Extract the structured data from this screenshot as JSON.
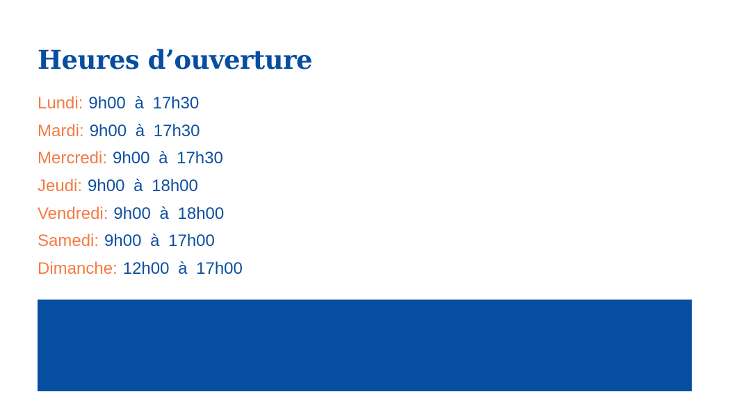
{
  "title": "Heures d’ouverture",
  "hours": [
    {
      "day": "Lundi:",
      "time": "9h00 à 17h30"
    },
    {
      "day": "Mardi:",
      "time": "9h00 à 17h30"
    },
    {
      "day": "Mercredi:",
      "time": "9h00 à 17h30"
    },
    {
      "day": "Jeudi:",
      "time": "9h00 à 18h00"
    },
    {
      "day": "Vendredi:",
      "time": "9h00 à 18h00"
    },
    {
      "day": "Samedi:",
      "time": "9h00 à 17h00"
    },
    {
      "day": "Dimanche:",
      "time": "12h00 à 17h00"
    }
  ],
  "colors": {
    "primary": "#074ea1",
    "accent": "#f47b45"
  }
}
